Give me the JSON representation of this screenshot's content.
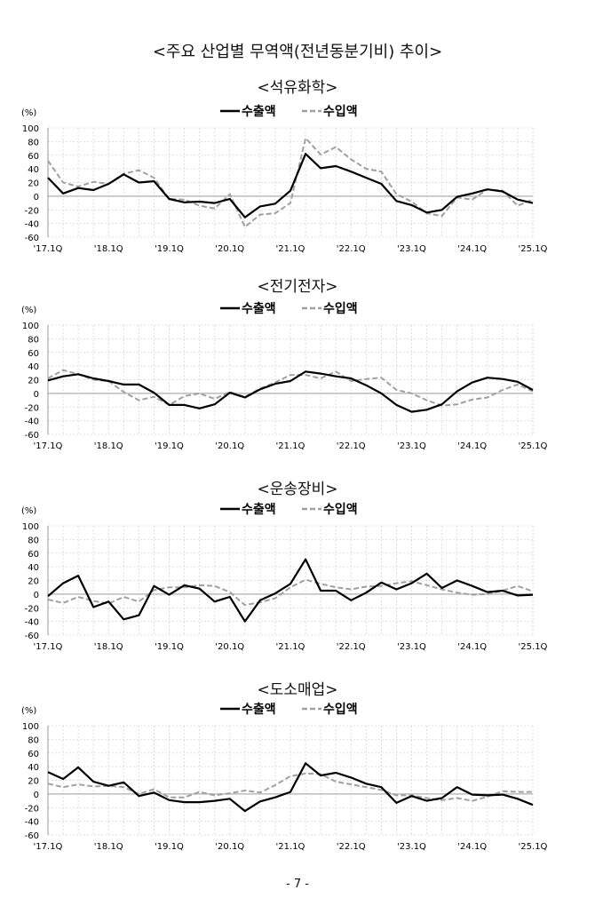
{
  "page": {
    "title": "<주요 산업별 무역액(전년동분기비) 추이>",
    "footer": "- 7 -"
  },
  "colors": {
    "export": "#000000",
    "import": "#a0a0a0",
    "grid": "#d8d8d8",
    "zero": "#bdbdbd"
  },
  "chart_data": [
    {
      "type": "line",
      "title": "<석유화학>",
      "ylabel": "(%)",
      "ylim": [
        -60,
        100
      ],
      "yticks": [
        "100",
        "80",
        "60",
        "40",
        "20",
        "0",
        "-20",
        "-40",
        "-60"
      ],
      "xtick_labels": [
        "'17.1Q",
        "'18.1Q",
        "'19.1Q",
        "'20.1Q",
        "'21.1Q",
        "'22.1Q",
        "'23.1Q",
        "'24.1Q",
        "'25.1Q"
      ],
      "legend": "top-center",
      "series": [
        {
          "name": "수출액",
          "style": "solid",
          "values": [
            27,
            4,
            12,
            9,
            18,
            32,
            20,
            22,
            -4,
            -9,
            -8,
            -10,
            -4,
            -31,
            -15,
            -11,
            8,
            62,
            41,
            44,
            36,
            27,
            18,
            -7,
            -13,
            -24,
            -20,
            -1,
            4,
            10,
            7,
            -5,
            -10
          ]
        },
        {
          "name": "수입액",
          "style": "dashed",
          "values": [
            52,
            20,
            14,
            21,
            18,
            33,
            38,
            27,
            -4,
            -5,
            -14,
            -18,
            3,
            -45,
            -27,
            -25,
            -10,
            85,
            61,
            72,
            54,
            40,
            36,
            3,
            -8,
            -25,
            -29,
            -2,
            -5,
            10,
            8,
            -14,
            -5
          ]
        }
      ]
    },
    {
      "type": "line",
      "title": "<전기전자>",
      "ylabel": "(%)",
      "ylim": [
        -60,
        100
      ],
      "yticks": [
        "100",
        "80",
        "60",
        "40",
        "20",
        "0",
        "-20",
        "-40",
        "-60"
      ],
      "xtick_labels": [
        "'17.1Q",
        "'18.1Q",
        "'19.1Q",
        "'20.1Q",
        "'21.1Q",
        "'22.1Q",
        "'23.1Q",
        "'24.1Q",
        "'25.1Q"
      ],
      "legend": "top-center",
      "series": [
        {
          "name": "수출액",
          "style": "solid",
          "values": [
            19,
            25,
            28,
            22,
            18,
            13,
            13,
            1,
            -17,
            -17,
            -22,
            -16,
            1,
            -6,
            6,
            14,
            18,
            32,
            29,
            25,
            22,
            12,
            0,
            -17,
            -27,
            -24,
            -16,
            3,
            16,
            23,
            21,
            17,
            5
          ]
        },
        {
          "name": "수입액",
          "style": "dashed",
          "values": [
            22,
            34,
            28,
            20,
            18,
            2,
            -10,
            -5,
            -17,
            -4,
            0,
            -8,
            2,
            -5,
            7,
            16,
            27,
            27,
            22,
            32,
            18,
            21,
            23,
            5,
            0,
            -10,
            -18,
            -16,
            -9,
            -6,
            5,
            13,
            3
          ]
        }
      ]
    },
    {
      "type": "line",
      "title": "<운송장비>",
      "ylabel": "(%)",
      "ylim": [
        -60,
        100
      ],
      "yticks": [
        "100",
        "80",
        "60",
        "40",
        "20",
        "0",
        "-20",
        "-40",
        "-60"
      ],
      "xtick_labels": [
        "'17.1Q",
        "'18.1Q",
        "'19.1Q",
        "'20.1Q",
        "'21.1Q",
        "'22.1Q",
        "'23.1Q",
        "'24.1Q",
        "'25.1Q"
      ],
      "legend": "top-center",
      "series": [
        {
          "name": "수출액",
          "style": "solid",
          "values": [
            -3,
            16,
            27,
            -19,
            -11,
            -37,
            -31,
            12,
            -1,
            13,
            8,
            -11,
            -4,
            -40,
            -9,
            1,
            15,
            51,
            5,
            5,
            -9,
            2,
            17,
            7,
            16,
            30,
            9,
            20,
            12,
            3,
            5,
            -2,
            -1
          ]
        },
        {
          "name": "수입액",
          "style": "dashed",
          "values": [
            -8,
            -13,
            -4,
            -10,
            -14,
            -4,
            -11,
            6,
            10,
            10,
            13,
            12,
            3,
            -16,
            -12,
            -6,
            10,
            21,
            15,
            10,
            7,
            11,
            12,
            16,
            19,
            13,
            7,
            2,
            -1,
            0,
            5,
            12,
            4
          ]
        }
      ]
    },
    {
      "type": "line",
      "title": "<도소매업>",
      "ylabel": "(%)",
      "ylim": [
        -60,
        100
      ],
      "yticks": [
        "100",
        "80",
        "60",
        "40",
        "20",
        "0",
        "-20",
        "-40",
        "-60"
      ],
      "xtick_labels": [
        "'17.1Q",
        "'18.1Q",
        "'19.1Q",
        "'20.1Q",
        "'21.1Q",
        "'22.1Q",
        "'23.1Q",
        "'24.1Q",
        "'25.1Q"
      ],
      "legend": "top-center",
      "series": [
        {
          "name": "수출액",
          "style": "solid",
          "values": [
            32,
            22,
            39,
            18,
            12,
            17,
            -3,
            2,
            -9,
            -12,
            -12,
            -10,
            -7,
            -25,
            -11,
            -5,
            3,
            45,
            27,
            31,
            24,
            15,
            10,
            -13,
            -3,
            -10,
            -6,
            10,
            -1,
            -2,
            -1,
            -7,
            -16
          ]
        },
        {
          "name": "수입액",
          "style": "dashed",
          "values": [
            15,
            10,
            14,
            11,
            12,
            10,
            0,
            7,
            -5,
            -5,
            3,
            -2,
            1,
            5,
            2,
            13,
            26,
            30,
            29,
            18,
            14,
            10,
            6,
            -2,
            -2,
            -6,
            -9,
            -6,
            -10,
            -4,
            4,
            3,
            3
          ]
        }
      ]
    }
  ]
}
